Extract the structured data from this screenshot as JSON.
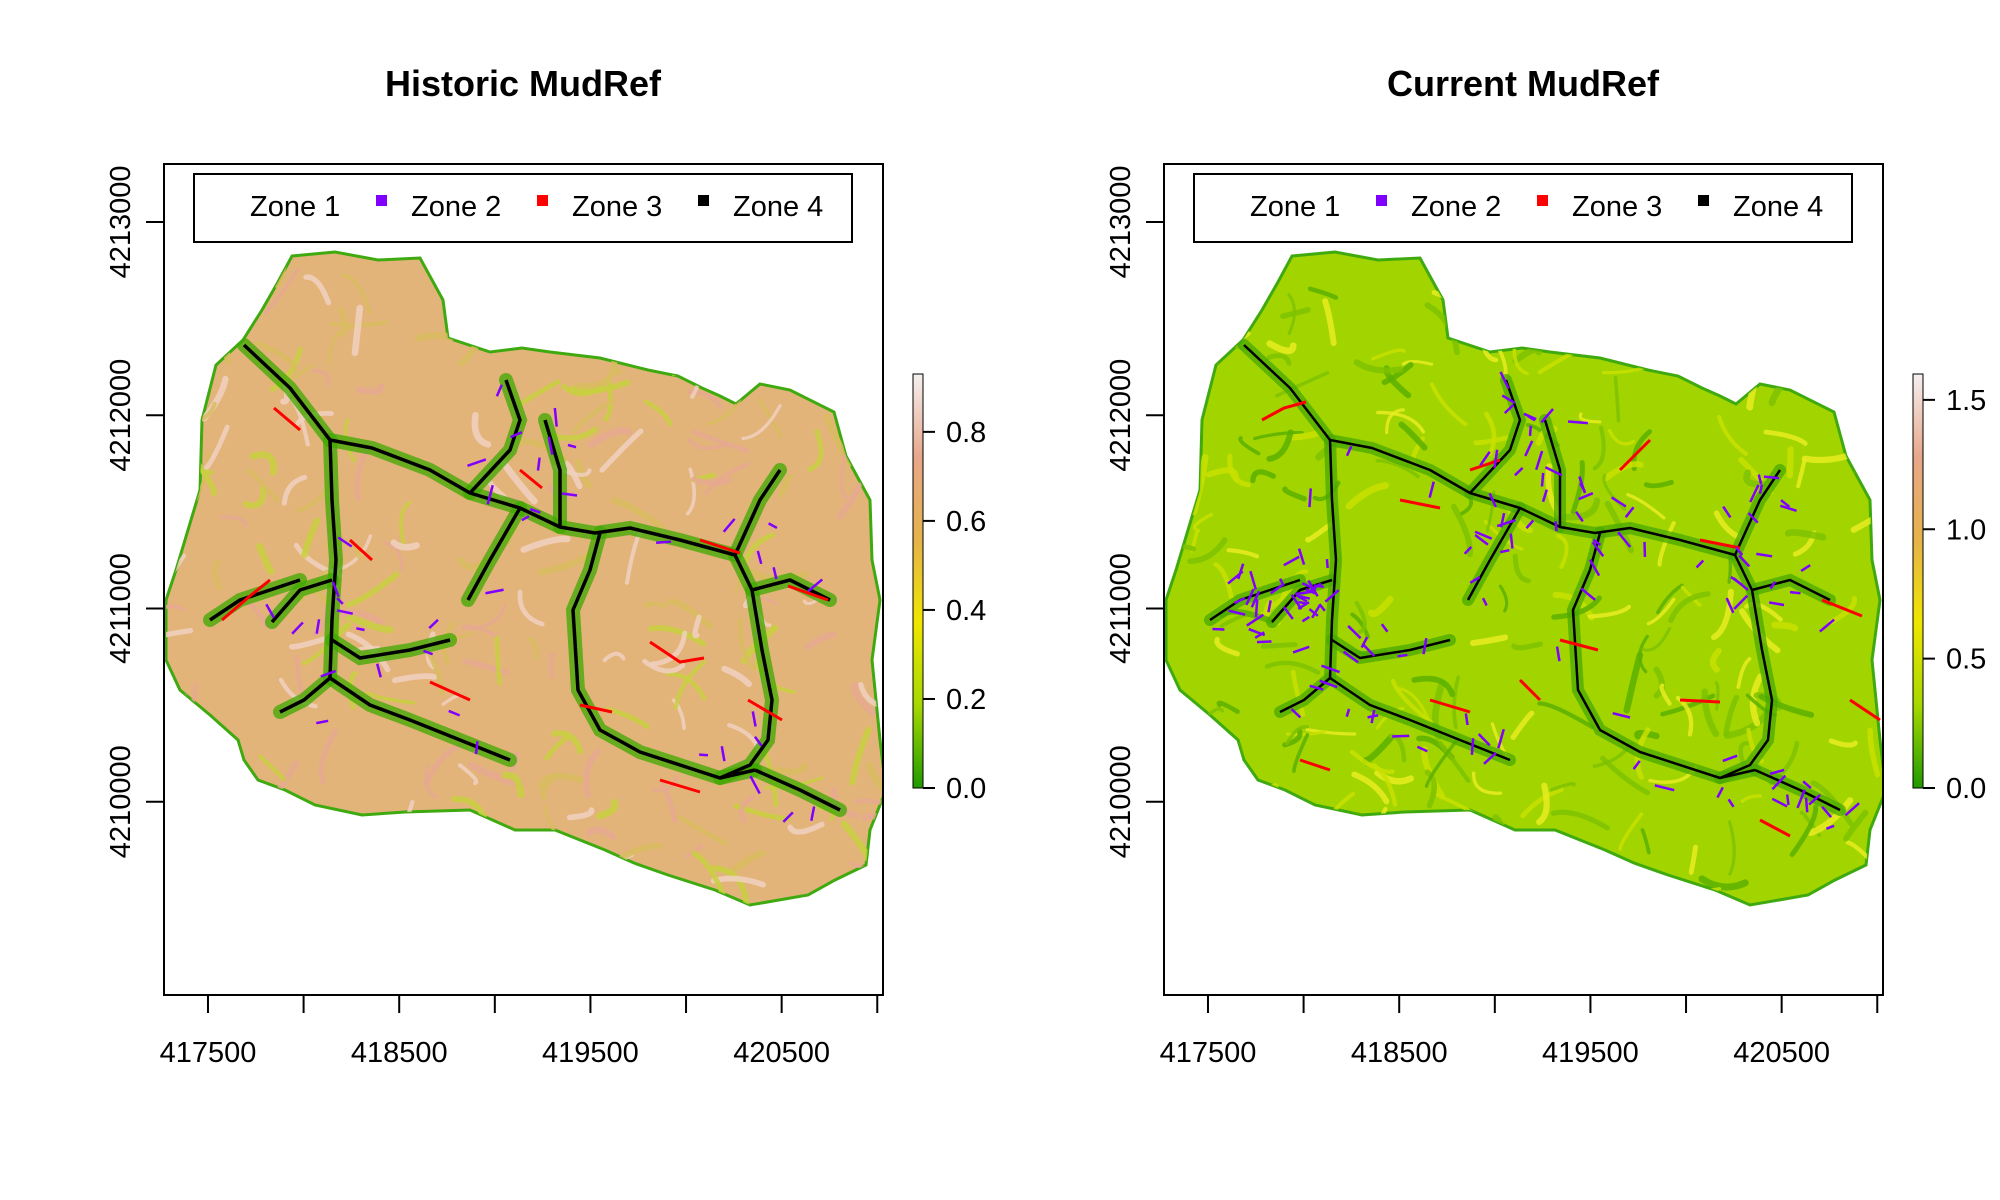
{
  "chart_data": [
    {
      "type": "heatmap",
      "title": "Historic MudRef",
      "xlabel": "",
      "ylabel": "",
      "xlim": [
        417270,
        421030
      ],
      "ylim": [
        4209000,
        4213300
      ],
      "x_ticks": [
        417500,
        418000,
        418500,
        419000,
        419500,
        420000,
        420500,
        421000
      ],
      "x_tick_labels": [
        "417500",
        "",
        "418500",
        "",
        "419500",
        "",
        "420500",
        ""
      ],
      "y_ticks": [
        4210000,
        4211000,
        4212000,
        4213000
      ],
      "y_tick_labels": [
        "4210000",
        "4211000",
        "4212000",
        "4213000"
      ],
      "legend": {
        "position": "top",
        "entries": [
          {
            "label": "Zone 1",
            "color": ""
          },
          {
            "label": "Zone 2",
            "color": "#8000ff"
          },
          {
            "label": "Zone 3",
            "color": "#ff0000"
          },
          {
            "label": "Zone 4",
            "color": "#000000"
          }
        ]
      },
      "colorbar": {
        "range": [
          0,
          0.93
        ],
        "ticks": [
          0.0,
          0.2,
          0.4,
          0.6,
          0.8
        ],
        "tick_labels": [
          "0.0",
          "0.2",
          "0.4",
          "0.6",
          "0.8"
        ],
        "colors": [
          "#1f9a00",
          "#a6d800",
          "#f0e600",
          "#e6b24a",
          "#e8a78a",
          "#f5f0f0"
        ]
      },
      "field_mean": 0.55
    },
    {
      "type": "heatmap",
      "title": "Current MudRef",
      "xlabel": "",
      "ylabel": "",
      "xlim": [
        417270,
        421030
      ],
      "ylim": [
        4209000,
        4213300
      ],
      "x_ticks": [
        417500,
        418000,
        418500,
        419000,
        419500,
        420000,
        420500,
        421000
      ],
      "x_tick_labels": [
        "417500",
        "",
        "418500",
        "",
        "419500",
        "",
        "420500",
        ""
      ],
      "y_ticks": [
        4210000,
        4211000,
        4212000,
        4213000
      ],
      "y_tick_labels": [
        "4210000",
        "4211000",
        "4212000",
        "4213000"
      ],
      "legend": {
        "position": "top",
        "entries": [
          {
            "label": "Zone 1",
            "color": ""
          },
          {
            "label": "Zone 2",
            "color": "#8000ff"
          },
          {
            "label": "Zone 3",
            "color": "#ff0000"
          },
          {
            "label": "Zone 4",
            "color": "#000000"
          }
        ]
      },
      "colorbar": {
        "range": [
          0,
          1.6
        ],
        "ticks": [
          0.0,
          0.5,
          1.0,
          1.5
        ],
        "tick_labels": [
          "0.0",
          "0.5",
          "1.0",
          "1.5"
        ],
        "colors": [
          "#1f9a00",
          "#a6d800",
          "#f0e600",
          "#e6b24a",
          "#e8a78a",
          "#f5f0f0"
        ]
      },
      "field_mean": 0.35
    }
  ]
}
